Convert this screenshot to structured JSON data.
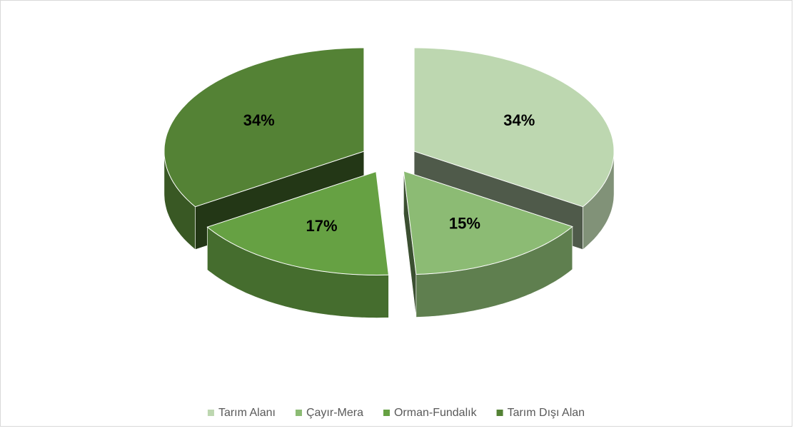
{
  "chart_data": {
    "type": "pie3d",
    "categories": [
      "Tarım Alanı",
      "Çayır-Mera",
      "Orman-Fundalık",
      "Tarım Dışı Alan"
    ],
    "values": [
      34,
      15,
      17,
      34
    ],
    "value_labels": [
      "34%",
      "15%",
      "17%",
      "34%"
    ],
    "colors": [
      "#bdd7b0",
      "#8cbb74",
      "#66a143",
      "#548235"
    ],
    "legend": "bottom"
  }
}
